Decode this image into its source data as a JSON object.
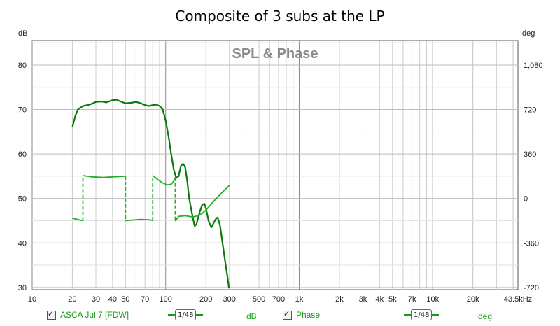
{
  "chart_data": {
    "type": "line",
    "title": "Composite of 3 subs at the LP",
    "subtitle": "SPL & Phase",
    "left_axis": {
      "unit": "dB",
      "ticks": [
        30,
        40,
        50,
        60,
        70,
        80
      ],
      "range": [
        29.5,
        85.5
      ]
    },
    "right_axis": {
      "unit": "deg",
      "ticks": [
        -720,
        -360,
        0,
        360,
        720,
        1080
      ],
      "labels": [
        "-720",
        "-360",
        "0",
        "360",
        "720",
        "1,080"
      ]
    },
    "x_axis": {
      "scale": "log",
      "range": [
        10,
        43500
      ],
      "ticks": [
        10,
        20,
        30,
        40,
        50,
        70,
        100,
        200,
        300,
        500,
        700,
        1000,
        2000,
        3000,
        4000,
        5000,
        7000,
        10000,
        20000,
        43500
      ],
      "tick_labels": [
        "10",
        "20",
        "30",
        "40",
        "50",
        "70",
        "100",
        "200",
        "300",
        "500",
        "700",
        "1k",
        "2k",
        "3k",
        "4k",
        "5k",
        "7k",
        "10k",
        "20k",
        "43.5kHz"
      ]
    },
    "grid": true,
    "legend_position": "bottom",
    "colors": {
      "spl": "#0a7a0a",
      "phase": "#22b022"
    },
    "series": [
      {
        "name": "ASCA Jul 7 [FDW]",
        "axis": "left",
        "points": [
          [
            20,
            66
          ],
          [
            21,
            68.5
          ],
          [
            22,
            70
          ],
          [
            24,
            70.8
          ],
          [
            27,
            71.1
          ],
          [
            30,
            71.7
          ],
          [
            33,
            71.8
          ],
          [
            36,
            71.6
          ],
          [
            40,
            72.1
          ],
          [
            43,
            72.2
          ],
          [
            46,
            71.8
          ],
          [
            50,
            71.4
          ],
          [
            55,
            71.5
          ],
          [
            60,
            71.7
          ],
          [
            65,
            71.4
          ],
          [
            70,
            71.0
          ],
          [
            75,
            70.8
          ],
          [
            80,
            71.0
          ],
          [
            85,
            71.1
          ],
          [
            90,
            70.8
          ],
          [
            95,
            70.0
          ],
          [
            100,
            67.5
          ],
          [
            105,
            64
          ],
          [
            110,
            60
          ],
          [
            115,
            56.5
          ],
          [
            120,
            54.6
          ],
          [
            125,
            55
          ],
          [
            130,
            57.3
          ],
          [
            135,
            57.8
          ],
          [
            140,
            57
          ],
          [
            145,
            54
          ],
          [
            150,
            50
          ],
          [
            160,
            45.5
          ],
          [
            165,
            43.8
          ],
          [
            170,
            44.2
          ],
          [
            180,
            47
          ],
          [
            188,
            48.6
          ],
          [
            195,
            48.8
          ],
          [
            200,
            47.8
          ],
          [
            210,
            44.8
          ],
          [
            220,
            43.5
          ],
          [
            230,
            44.6
          ],
          [
            240,
            45.6
          ],
          [
            245,
            45.7
          ],
          [
            255,
            44
          ],
          [
            265,
            40.5
          ],
          [
            280,
            35.5
          ],
          [
            290,
            32.5
          ],
          [
            298,
            29.8
          ]
        ]
      },
      {
        "name": "Phase",
        "axis": "right",
        "points": [
          [
            20,
            -160
          ],
          [
            24,
            -180
          ],
          [
            24,
            185
          ],
          [
            28,
            175
          ],
          [
            34,
            170
          ],
          [
            40,
            175
          ],
          [
            46,
            178
          ],
          [
            50,
            180
          ],
          [
            50,
            -180
          ],
          [
            55,
            -175
          ],
          [
            65,
            -170
          ],
          [
            75,
            -172
          ],
          [
            80,
            -178
          ],
          [
            80,
            185
          ],
          [
            88,
            150
          ],
          [
            95,
            125
          ],
          [
            103,
            110
          ],
          [
            110,
            115
          ],
          [
            115,
            140
          ],
          [
            118,
            170
          ],
          [
            118,
            -185
          ],
          [
            125,
            -145
          ],
          [
            140,
            -140
          ],
          [
            160,
            -150
          ],
          [
            180,
            -135
          ],
          [
            200,
            -95
          ],
          [
            230,
            -20
          ],
          [
            260,
            40
          ],
          [
            300,
            105
          ]
        ]
      }
    ]
  },
  "legend": {
    "items": [
      {
        "label": "ASCA Jul 7 [FDW]",
        "smoothing": "1/48",
        "unit": "dB"
      },
      {
        "label": "Phase",
        "smoothing": "1/48",
        "unit": "deg"
      }
    ]
  }
}
